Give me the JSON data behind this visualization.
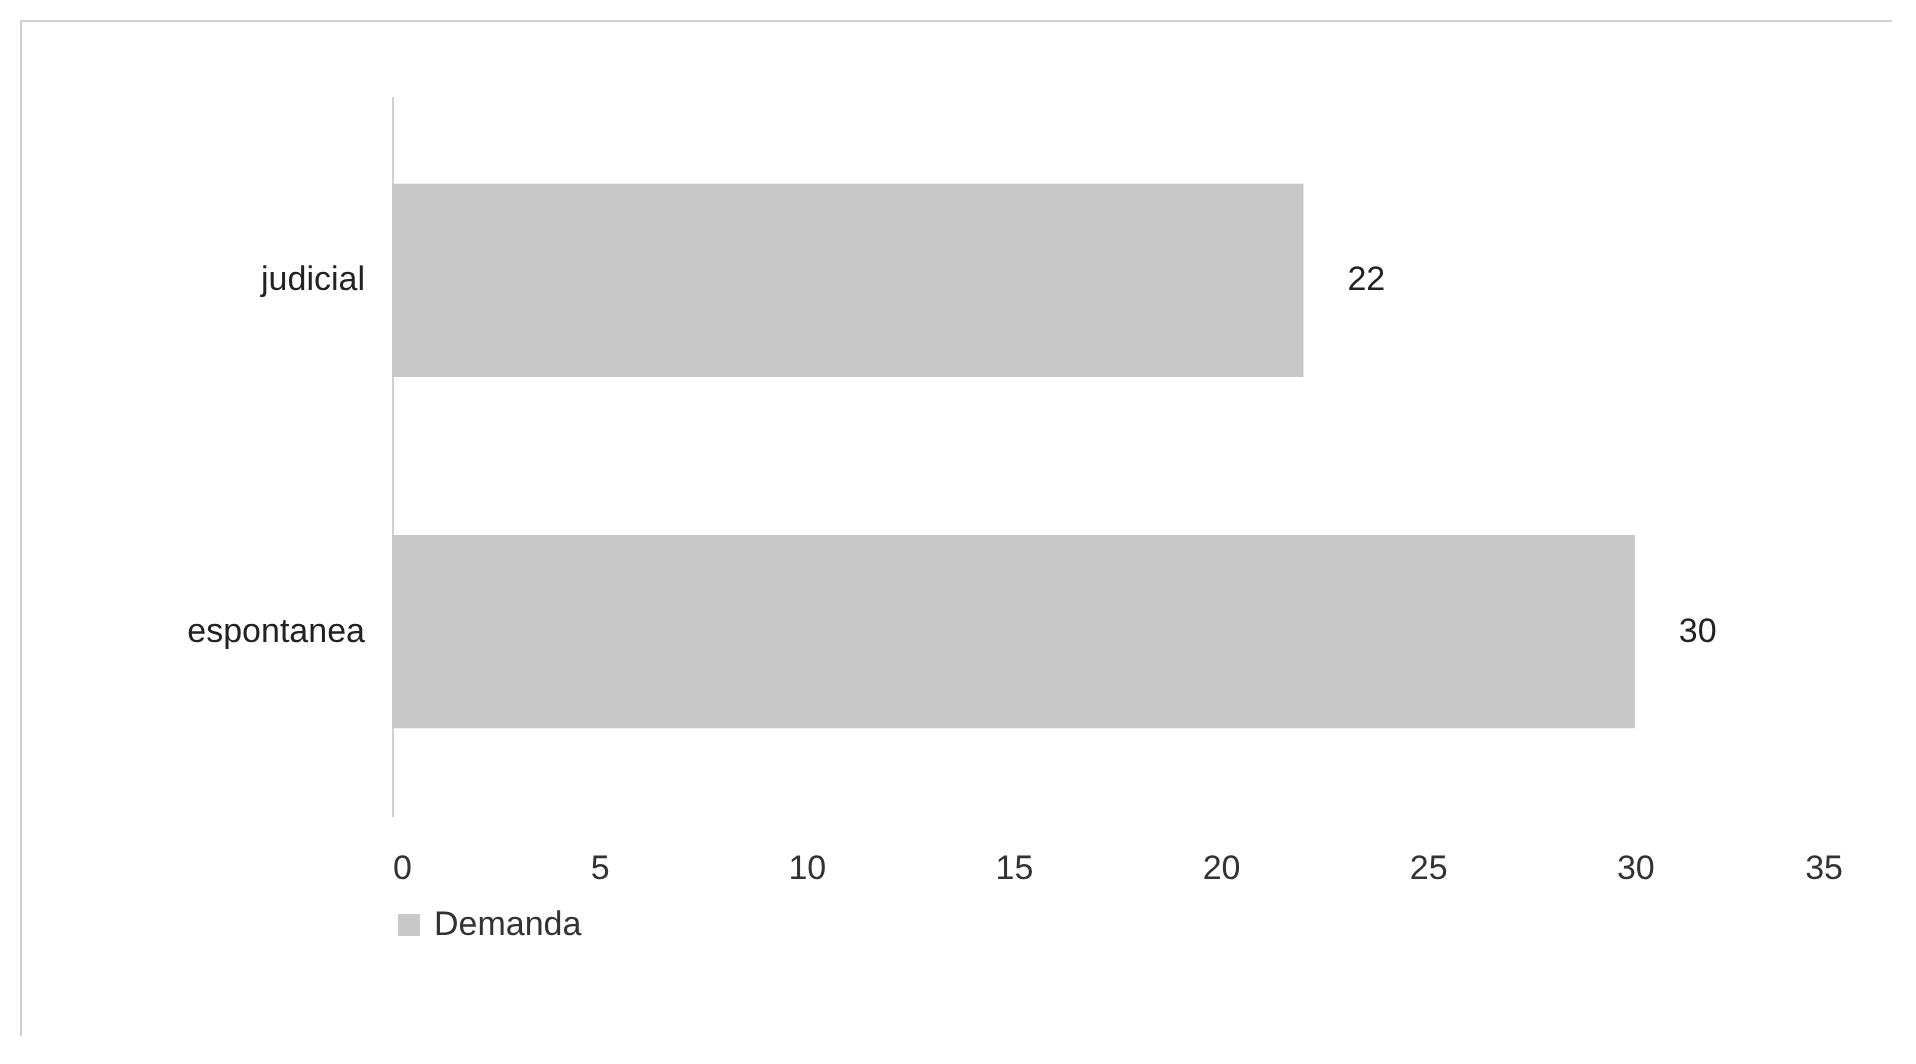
{
  "chart_data": {
    "type": "bar",
    "orientation": "horizontal",
    "categories": [
      "judicial",
      "espontanea"
    ],
    "series": [
      {
        "name": "Demanda",
        "color": "#c8c8c8",
        "values": [
          22,
          30
        ]
      }
    ],
    "xlim": [
      0,
      35
    ],
    "xticks": [
      0,
      5,
      10,
      15,
      20,
      25,
      30,
      35
    ],
    "grid": false,
    "legend": "bottom",
    "data_labels": true
  }
}
